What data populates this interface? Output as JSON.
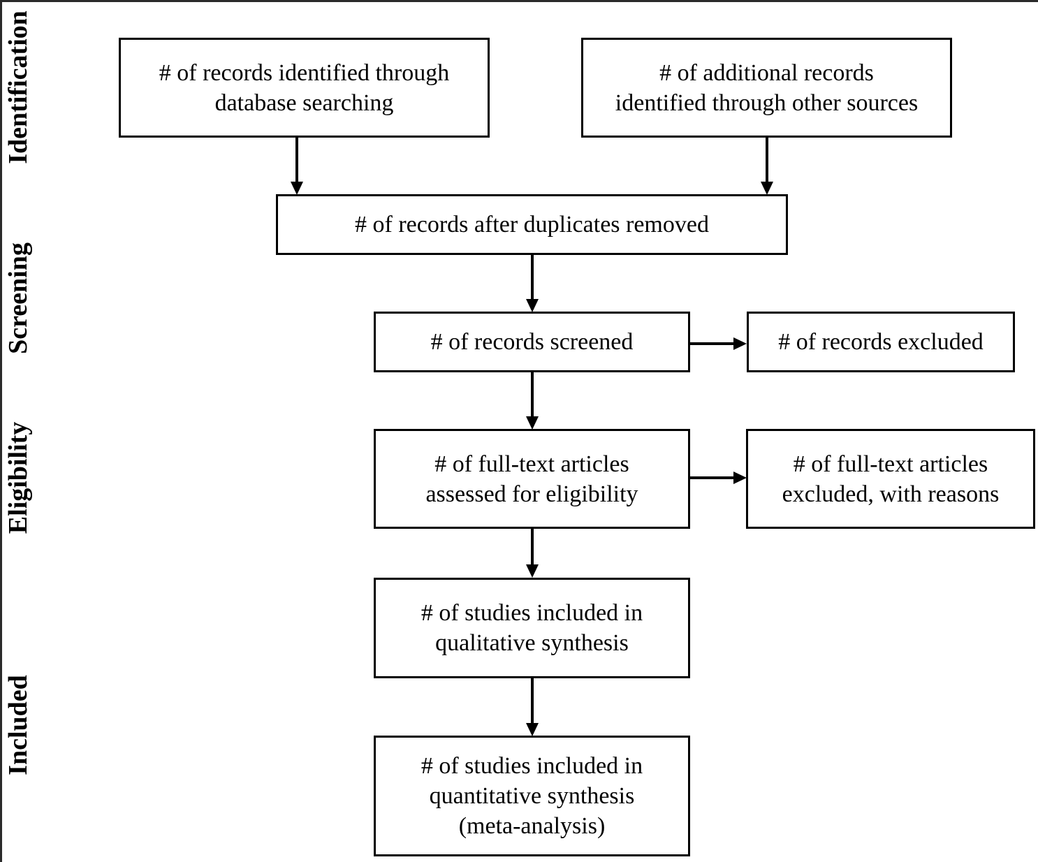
{
  "stages": [
    {
      "id": "identification",
      "label": "Identification"
    },
    {
      "id": "screening",
      "label": "Screening"
    },
    {
      "id": "eligibility",
      "label": "Eligibility"
    },
    {
      "id": "included",
      "label": "Included"
    }
  ],
  "boxes": {
    "database": "# of records identified through\ndatabase searching",
    "other_sources": "# of additional records\nidentified through other sources",
    "duplicates_removed": "# of records after duplicates removed",
    "screened": "# of records screened",
    "excluded": "# of records excluded",
    "full_text_assessed": "# of full-text articles\nassessed for eligibility",
    "full_text_excluded": "# of full-text articles\nexcluded, with reasons",
    "qualitative": "# of studies included in\nqualitative synthesis",
    "quantitative": "# of studies included in\nquantitative synthesis\n(meta-analysis)"
  }
}
